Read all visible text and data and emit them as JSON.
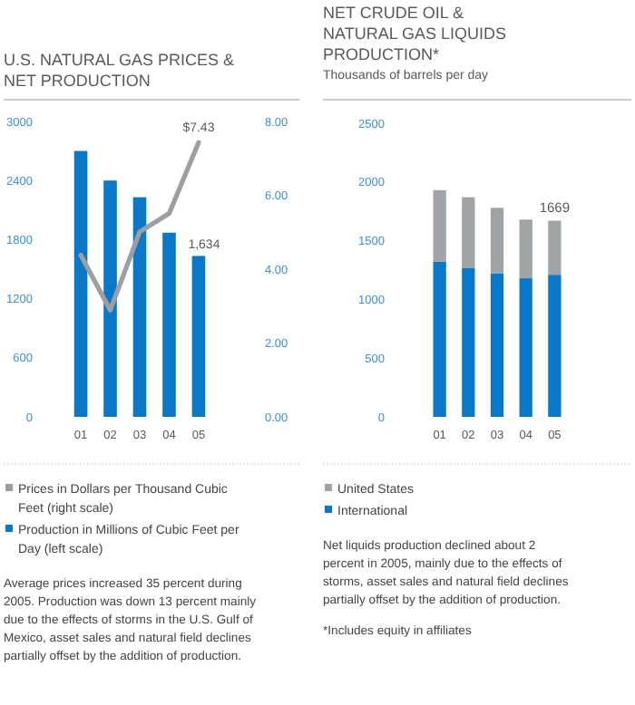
{
  "chart_data": [
    {
      "type": "bar",
      "title": "U.S. NATURAL GAS PRICES & NET PRODUCTION",
      "categories": [
        "01",
        "02",
        "03",
        "04",
        "05"
      ],
      "series": [
        {
          "name": "Prices in Dollars per Thousand Cubic Feet (right scale)",
          "type": "line",
          "axis": "y2",
          "color": "#9c9fa1",
          "values": [
            4.38,
            2.89,
            5.01,
            5.51,
            7.43
          ],
          "value_labels": [
            null,
            null,
            null,
            null,
            "$7.43"
          ]
        },
        {
          "name": "Production in Millions of Cubic Feet per Day (left scale)",
          "type": "bar",
          "color": "#0a78c8",
          "values": [
            2700,
            2400,
            2230,
            1870,
            1634
          ],
          "value_labels": [
            null,
            null,
            null,
            null,
            "1,634"
          ]
        }
      ],
      "ylim": [
        0,
        3000
      ],
      "yticks": [
        0,
        600,
        1200,
        1800,
        2400,
        3000
      ],
      "y2lim": [
        0,
        8
      ],
      "y2ticks": [
        {
          "value": 0,
          "label": "0.00"
        },
        {
          "value": 2,
          "label": "2.00"
        },
        {
          "value": 4,
          "label": "4.00"
        },
        {
          "value": 6,
          "label": "6.00"
        },
        {
          "value": 8,
          "label": "8.00"
        }
      ],
      "grid": false,
      "legend": "bottom",
      "line_style": "solid",
      "marker": "none",
      "annotations": [
        "Average prices increased 35 percent during 2005. Production was down 13 percent mainly due to the effects of storms in the U.S. Gulf of Mexico, asset sales and natural field declines partially offset by the addition of production."
      ]
    },
    {
      "type": "bar",
      "title": "NET CRUDE OIL & NATURAL GAS LIQUIDS PRODUCTION*",
      "subtitle": "Thousands of barrels per day",
      "categories": [
        "01",
        "02",
        "03",
        "04",
        "05"
      ],
      "stacked": true,
      "series": [
        {
          "name": "International",
          "color": "#0a78c8",
          "values": [
            1320,
            1270,
            1220,
            1180,
            1210
          ]
        },
        {
          "name": "United States",
          "color": "#a0a4a6",
          "values": [
            610,
            600,
            560,
            500,
            460
          ]
        }
      ],
      "totals": [
        null,
        null,
        null,
        null,
        "1669"
      ],
      "ylim": [
        0,
        2500
      ],
      "yticks": [
        0,
        500,
        1000,
        1500,
        2000,
        2500
      ],
      "grid": false,
      "legend": "bottom",
      "annotations": [
        "Net liquids production declined about 2 percent in 2005, mainly due to the effects of storms, asset sales and natural field declines partially offset by the addition of production.",
        "*Includes equity in affiliates"
      ]
    }
  ]
}
